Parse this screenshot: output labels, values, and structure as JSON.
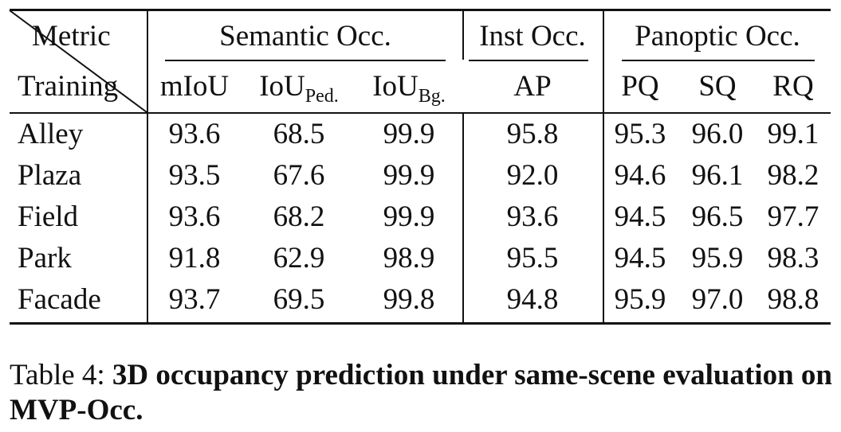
{
  "table": {
    "corner": {
      "top_label": "Metric",
      "bottom_label": "Training"
    },
    "groups": {
      "semantic": "Semantic Occ.",
      "instance": "Inst Occ.",
      "panoptic": "Panoptic Occ."
    },
    "columns": {
      "miou": "mIoU",
      "iou_ped_base": "IoU",
      "iou_ped_sub": "Ped.",
      "iou_bg_base": "IoU",
      "iou_bg_sub": "Bg.",
      "ap": "AP",
      "pq": "PQ",
      "sq": "SQ",
      "rq": "RQ"
    },
    "rows": [
      {
        "scene": "Alley",
        "miou": "93.6",
        "iou_ped": "68.5",
        "iou_bg": "99.9",
        "ap": "95.8",
        "pq": "95.3",
        "sq": "96.0",
        "rq": "99.1"
      },
      {
        "scene": "Plaza",
        "miou": "93.5",
        "iou_ped": "67.6",
        "iou_bg": "99.9",
        "ap": "92.0",
        "pq": "94.6",
        "sq": "96.1",
        "rq": "98.2"
      },
      {
        "scene": "Field",
        "miou": "93.6",
        "iou_ped": "68.2",
        "iou_bg": "99.9",
        "ap": "93.6",
        "pq": "94.5",
        "sq": "96.5",
        "rq": "97.7"
      },
      {
        "scene": "Park",
        "miou": "91.8",
        "iou_ped": "62.9",
        "iou_bg": "98.9",
        "ap": "95.5",
        "pq": "94.5",
        "sq": "95.9",
        "rq": "98.3"
      },
      {
        "scene": "Facade",
        "miou": "93.7",
        "iou_ped": "69.5",
        "iou_bg": "99.8",
        "ap": "94.8",
        "pq": "95.9",
        "sq": "97.0",
        "rq": "98.8"
      }
    ]
  },
  "caption": {
    "label": "Table 4: ",
    "bold_text": "3D occupancy prediction under same-scene evaluation on MVP-Occ."
  }
}
